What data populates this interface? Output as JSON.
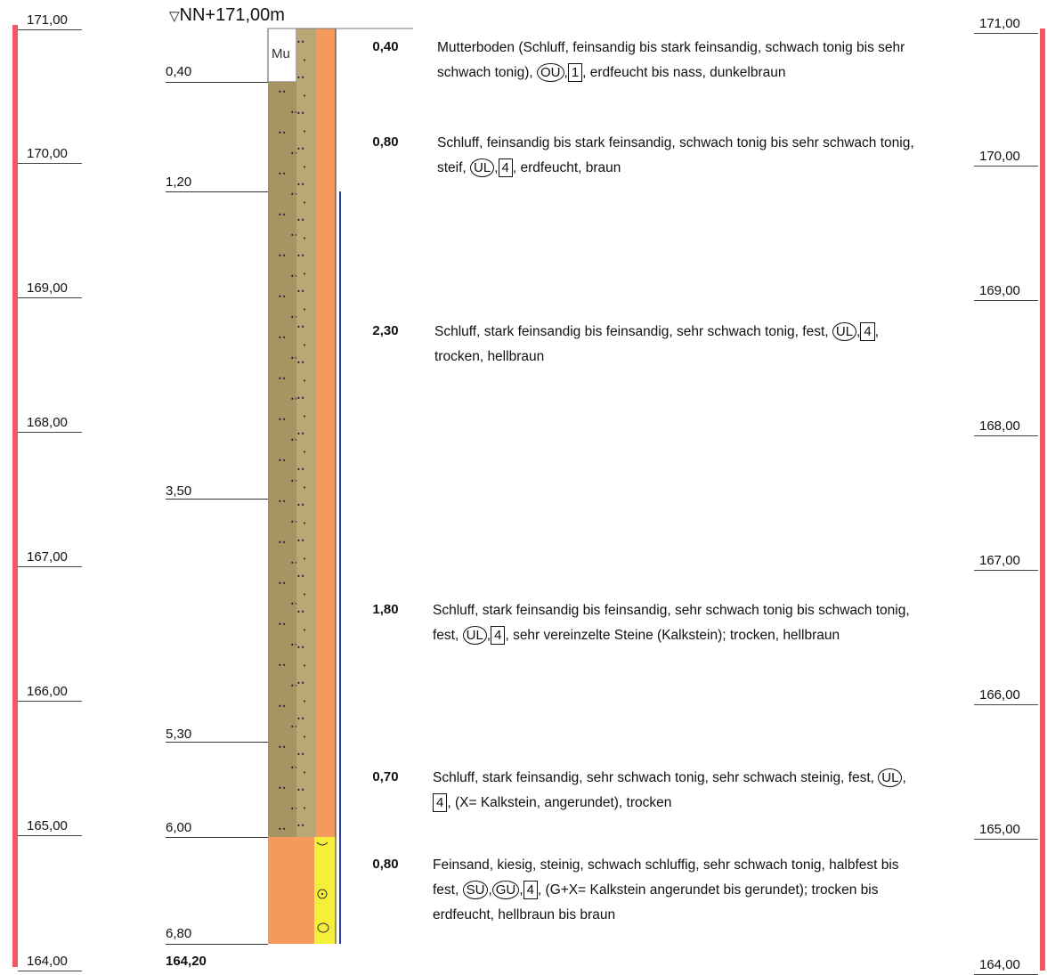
{
  "header": {
    "level_label": "NN+171,00m",
    "level_symbol": "▽"
  },
  "elevations": [
    "171,00",
    "170,00",
    "169,00",
    "168,00",
    "167,00",
    "166,00",
    "165,00",
    "164,00"
  ],
  "depths": [
    {
      "label": "0,40"
    },
    {
      "label": "1,20"
    },
    {
      "label": "3,50"
    },
    {
      "label": "5,30"
    },
    {
      "label": "6,00"
    },
    {
      "label": "6,80"
    }
  ],
  "bottom_elevation": "164,20",
  "column_labels": {
    "top_code": "Mu"
  },
  "layers": [
    {
      "thickness": "0,40",
      "text_before": "Mutterboden (Schluff, feinsandig bis stark feinsandig, schwach tonig bis sehr schwach tonig), ",
      "symbols": [
        {
          "type": "circle",
          "text": "OU"
        },
        {
          "type": "box",
          "text": "1"
        }
      ],
      "text_after": ", erdfeucht bis nass, dunkelbraun"
    },
    {
      "thickness": "0,80",
      "text_before": "Schluff, feinsandig bis stark feinsandig, schwach tonig bis sehr schwach tonig, steif, ",
      "symbols": [
        {
          "type": "circle",
          "text": "UL"
        },
        {
          "type": "box",
          "text": "4"
        }
      ],
      "text_after": ", erdfeucht, braun"
    },
    {
      "thickness": "2,30",
      "text_before": "Schluff, stark feinsandig bis feinsandig, sehr schwach tonig, fest, ",
      "symbols": [
        {
          "type": "circle",
          "text": "UL"
        },
        {
          "type": "box",
          "text": "4"
        }
      ],
      "text_after": ", trocken, hellbraun"
    },
    {
      "thickness": "1,80",
      "text_before": "Schluff, stark feinsandig bis feinsandig, sehr schwach tonig bis schwach tonig, fest, ",
      "symbols": [
        {
          "type": "circle",
          "text": "UL"
        },
        {
          "type": "box",
          "text": "4"
        }
      ],
      "text_after": ", sehr vereinzelte Steine (Kalkstein); trocken, hellbraun"
    },
    {
      "thickness": "0,70",
      "text_before": "Schluff, stark feinsandig, sehr schwach tonig, sehr schwach steinig, fest, ",
      "symbols": [
        {
          "type": "circle",
          "text": "UL"
        },
        {
          "type": "box",
          "text": "4"
        }
      ],
      "text_after": ", (X= Kalkstein, angerundet), trocken"
    },
    {
      "thickness": "0,80",
      "text_before": "Feinsand, kiesig, steinig, schwach schluffig, sehr schwach tonig, halbfest bis fest, ",
      "symbols": [
        {
          "type": "circle",
          "text": "SU"
        },
        {
          "type": "circle",
          "text": "GU"
        },
        {
          "type": "box",
          "text": "4"
        }
      ],
      "text_after": ", (G+X= Kalkstein angerundet bis gerundet); trocken bis erdfeucht, hellbraun bis braun"
    }
  ],
  "colors": {
    "scale_bar": "#f25565",
    "silt": "#a89462",
    "silt_band": "#b8a673",
    "fill_orange": "#f49a5c",
    "sand_yellow": "#f6ef3a",
    "dots": "#2a2a3c"
  }
}
